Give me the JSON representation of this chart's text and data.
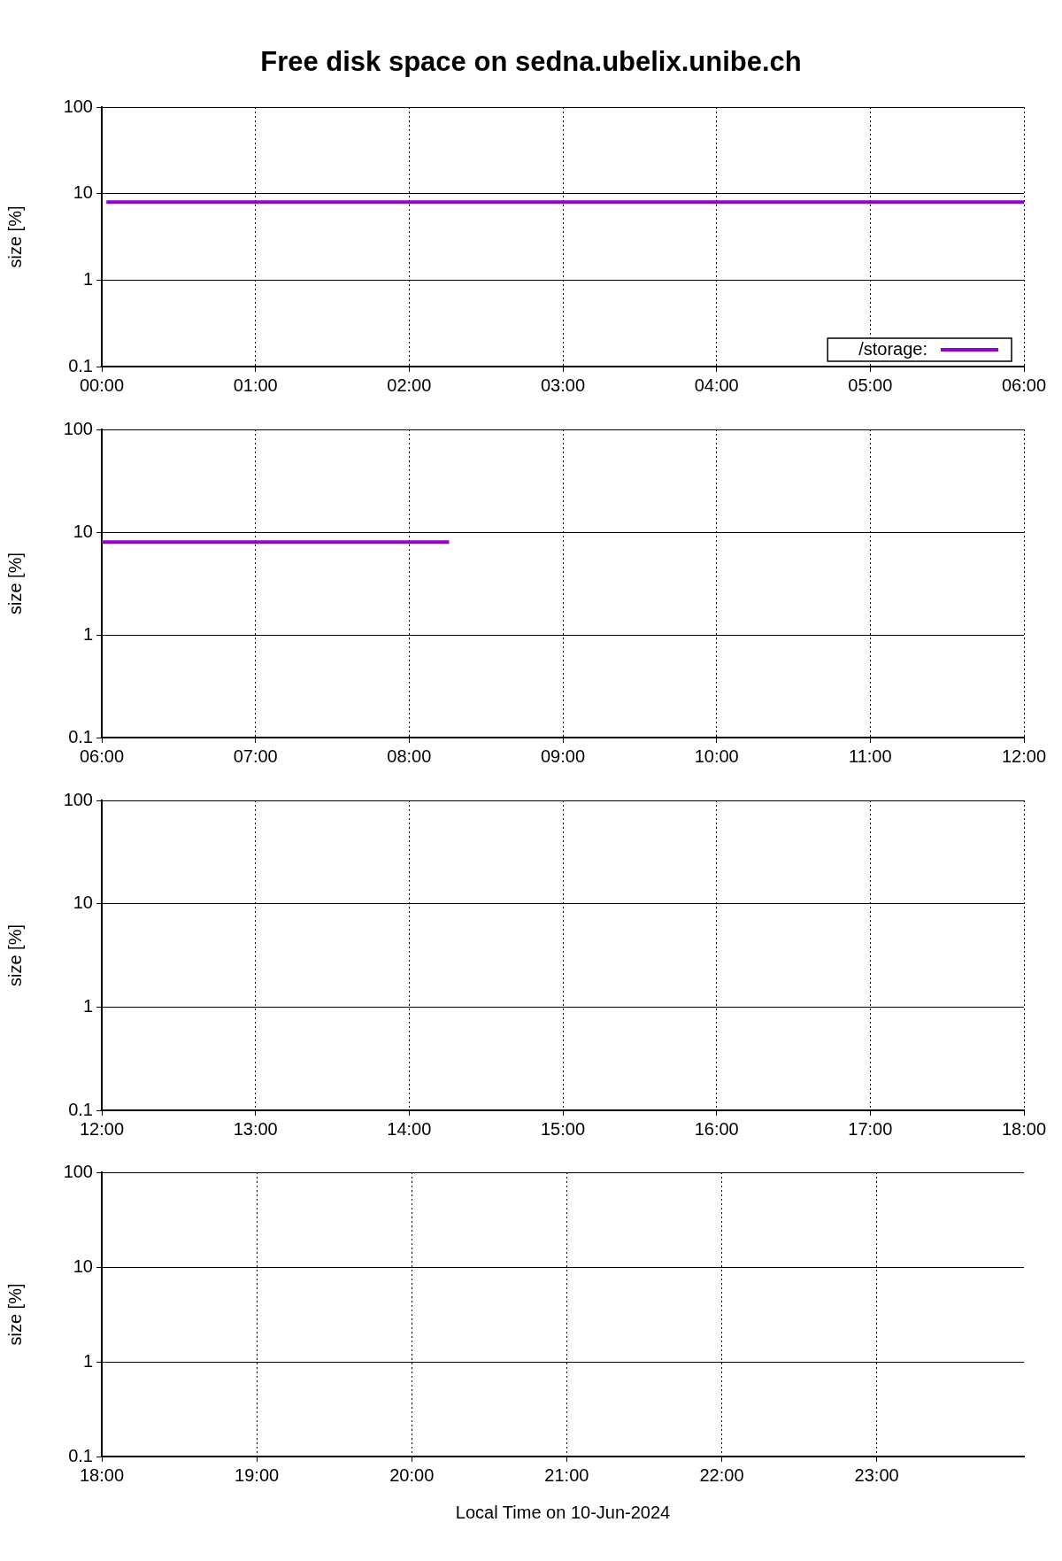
{
  "chart_data": [
    {
      "type": "line",
      "title": "Free disk space on sedna.ubelix.unibe.ch",
      "ylabel": "size [%]",
      "log": "y",
      "grid": true,
      "legend": "bottom right",
      "marker": "none",
      "xlim": [
        0,
        6
      ],
      "xticks": [
        {
          "value": 0,
          "label": "00:00"
        },
        {
          "value": 1,
          "label": "01:00"
        },
        {
          "value": 2,
          "label": "02:00"
        },
        {
          "value": 3,
          "label": "03:00"
        },
        {
          "value": 4,
          "label": "04:00"
        },
        {
          "value": 5,
          "label": "05:00"
        },
        {
          "value": 6,
          "label": "06:00"
        }
      ],
      "ylim": [
        0.1,
        100
      ],
      "yticks": [
        0.1,
        1,
        10,
        100
      ],
      "series": [
        {
          "name": "/storage:",
          "color": "#9400d3",
          "x": [
            0.03,
            3.0,
            6.0
          ],
          "values": [
            8,
            8,
            8
          ]
        }
      ]
    },
    {
      "type": "line",
      "ylabel": "size [%]",
      "log": "y",
      "grid": true,
      "marker": "none",
      "xlim": [
        6,
        12
      ],
      "xticks": [
        {
          "value": 6,
          "label": "06:00"
        },
        {
          "value": 7,
          "label": "07:00"
        },
        {
          "value": 8,
          "label": "08:00"
        },
        {
          "value": 9,
          "label": "09:00"
        },
        {
          "value": 10,
          "label": "10:00"
        },
        {
          "value": 11,
          "label": "11:00"
        },
        {
          "value": 12,
          "label": "12:00"
        }
      ],
      "ylim": [
        0.1,
        100
      ],
      "yticks": [
        0.1,
        1,
        10,
        100
      ],
      "series": [
        {
          "color": "#9400d3",
          "x": [
            6.0,
            8.26
          ],
          "values": [
            8,
            8
          ]
        }
      ]
    },
    {
      "type": "line",
      "ylabel": "size [%]",
      "log": "y",
      "grid": true,
      "xlim": [
        12,
        18
      ],
      "xticks": [
        {
          "value": 12,
          "label": "12:00"
        },
        {
          "value": 13,
          "label": "13:00"
        },
        {
          "value": 14,
          "label": "14:00"
        },
        {
          "value": 15,
          "label": "15:00"
        },
        {
          "value": 16,
          "label": "16:00"
        },
        {
          "value": 17,
          "label": "17:00"
        },
        {
          "value": 18,
          "label": "18:00"
        }
      ],
      "ylim": [
        0.1,
        100
      ],
      "yticks": [
        0.1,
        1,
        10,
        100
      ]
    },
    {
      "type": "line",
      "xlabel": "Local Time on 10-Jun-2024",
      "ylabel": "size [%]",
      "log": "y",
      "grid": true,
      "xlim": [
        18,
        23.95
      ],
      "xticks": [
        {
          "value": 18,
          "label": "18:00"
        },
        {
          "value": 19,
          "label": "19:00"
        },
        {
          "value": 20,
          "label": "20:00"
        },
        {
          "value": 21,
          "label": "21:00"
        },
        {
          "value": 22,
          "label": "22:00"
        },
        {
          "value": 23,
          "label": "23:00"
        }
      ],
      "ylim": [
        0.1,
        100
      ],
      "yticks": [
        0.1,
        1,
        10,
        100
      ]
    }
  ]
}
